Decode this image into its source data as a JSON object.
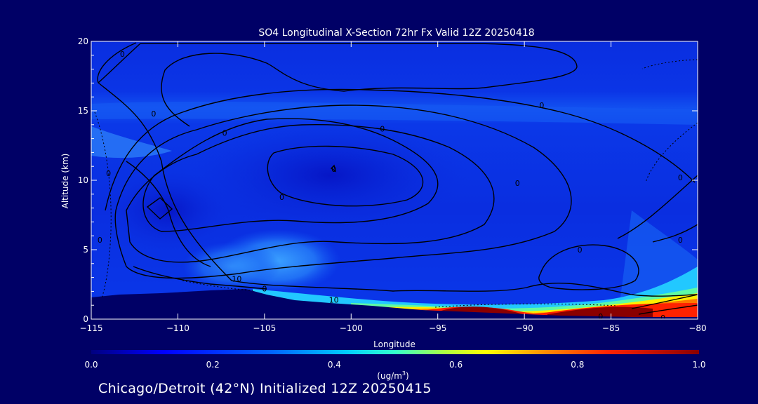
{
  "chart_data": {
    "type": "heatmap",
    "title": "SO4 Longitudinal X-Section 72hr  Fx Valid 12Z 20250418",
    "xlabel": "Longitude",
    "ylabel": "Altitude (km)",
    "xlim": [
      -115,
      -80
    ],
    "ylim": [
      0,
      20
    ],
    "x_ticks": [
      -115,
      -110,
      -105,
      -100,
      -95,
      -90,
      -85,
      -80
    ],
    "y_ticks": [
      0,
      5,
      10,
      15,
      20
    ],
    "colorbar": {
      "range": [
        0.0,
        1.0
      ],
      "ticks": [
        "0.0",
        "0.2",
        "0.4",
        "0.6",
        "0.8",
        "1.0"
      ],
      "unit_label": "(ug/m",
      "unit_sup": "3",
      "unit_close": ")"
    },
    "contour_labels": [
      {
        "text": "0",
        "lon": -113.2,
        "alt": 19.1
      },
      {
        "text": "0",
        "lon": -111.4,
        "alt": 14.8
      },
      {
        "text": "0",
        "lon": -107.3,
        "alt": 13.4
      },
      {
        "text": "0",
        "lon": -114.0,
        "alt": 10.5
      },
      {
        "text": "0",
        "lon": -101.0,
        "alt": 10.8
      },
      {
        "text": "0",
        "lon": -98.2,
        "alt": 13.7
      },
      {
        "text": "0",
        "lon": -104.0,
        "alt": 8.8
      },
      {
        "text": "0",
        "lon": -90.4,
        "alt": 9.8
      },
      {
        "text": "0",
        "lon": -81.0,
        "alt": 10.2
      },
      {
        "text": "0",
        "lon": -89.0,
        "alt": 15.4
      },
      {
        "text": "0",
        "lon": -86.8,
        "alt": 5.0
      },
      {
        "text": "0",
        "lon": -81.0,
        "alt": 5.7
      },
      {
        "text": "0",
        "lon": -114.5,
        "alt": 5.7
      },
      {
        "text": "10",
        "lon": -106.6,
        "alt": 2.9
      },
      {
        "text": "0",
        "lon": -105.0,
        "alt": 2.2
      },
      {
        "text": "10",
        "lon": -101.0,
        "alt": 1.4
      },
      {
        "text": "0",
        "lon": -82.0,
        "alt": 0.1
      },
      {
        "text": "0",
        "lon": -85.6,
        "alt": 0.2
      }
    ]
  },
  "footer": {
    "text": "Chicago/Detroit (42°N) Initialized 12Z 20250415"
  }
}
